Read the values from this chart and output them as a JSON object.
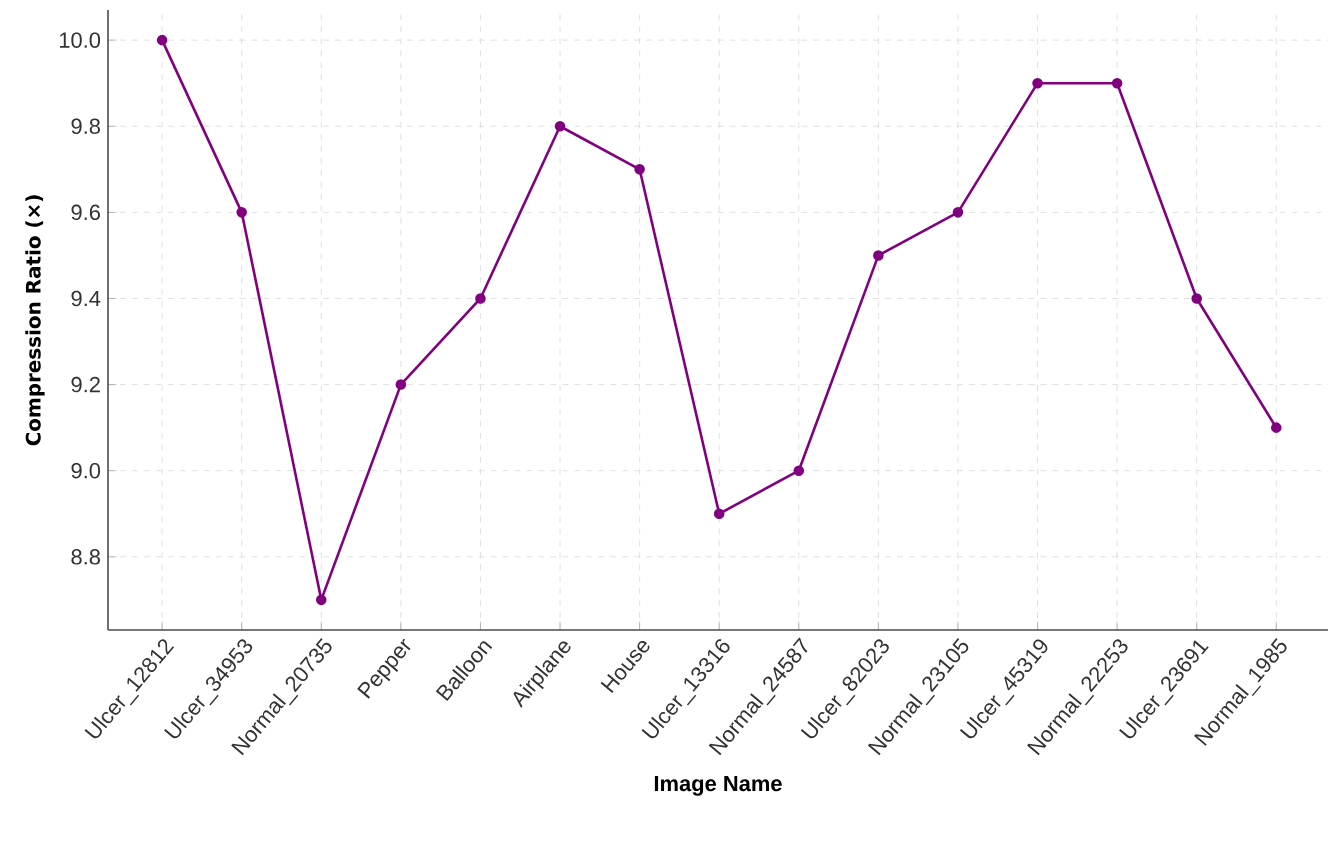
{
  "chart_data": {
    "type": "line",
    "xlabel": "Image Name",
    "ylabel": "Compression Ratio (×)",
    "categories": [
      "Ulcer_12812",
      "Ulcer_34953",
      "Normal_20735",
      "Pepper",
      "Balloon",
      "Airplane",
      "House",
      "Ulcer_13316",
      "Normal_24587",
      "Ulcer_82023",
      "Normal_23105",
      "Ulcer_45319",
      "Normal_22253",
      "Ulcer_23691",
      "Normal_1985"
    ],
    "series": [
      {
        "color": "#800080",
        "values": [
          10.0,
          9.6,
          8.7,
          9.2,
          9.4,
          9.8,
          9.7,
          8.9,
          9.0,
          9.5,
          9.6,
          9.9,
          9.9,
          9.4,
          9.1
        ]
      }
    ],
    "ylim": [
      8.63,
      10.07
    ],
    "yticks": [
      8.8,
      {
        "value": 9.0,
        "label": "9.0"
      },
      9.2,
      9.4,
      9.6,
      9.8,
      {
        "value": 10.0,
        "label": "10.0"
      }
    ],
    "grid": true,
    "marker": "circle",
    "line_style": "solid"
  }
}
